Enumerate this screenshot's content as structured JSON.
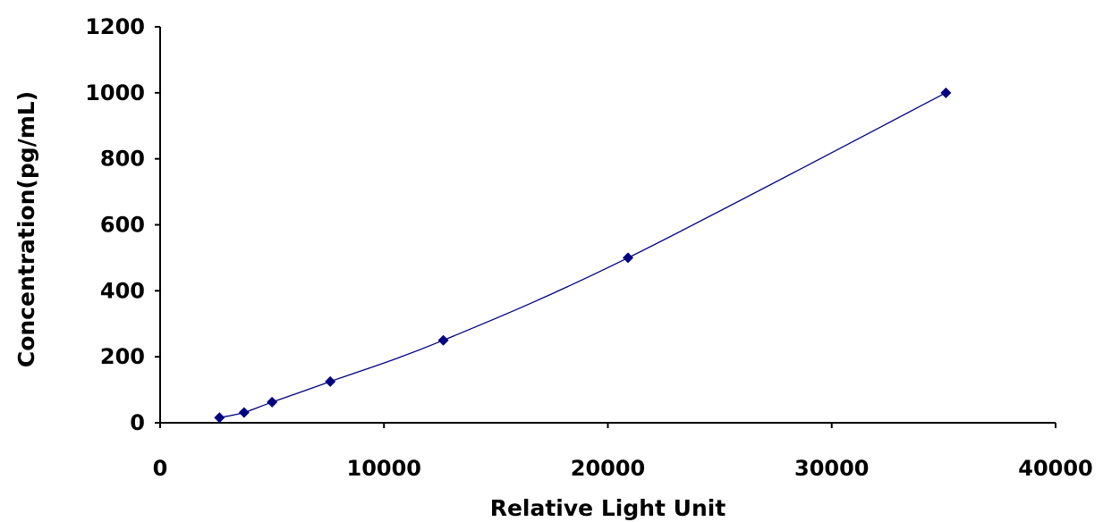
{
  "chart_data": {
    "type": "scatter",
    "title": "",
    "xlabel": "Relative Light Unit",
    "ylabel": "Concentration(pg/mL)",
    "xlim": [
      0,
      40000
    ],
    "ylim": [
      0,
      1200
    ],
    "xticks": [
      "0",
      "10000",
      "20000",
      "30000",
      "40000"
    ],
    "yticks": [
      "0",
      "200",
      "400",
      "600",
      "800",
      "1000",
      "1200"
    ],
    "grid": false,
    "legend": "none",
    "smooth_line": true,
    "series": [
      {
        "x": [
          2650,
          3750,
          5000,
          7600,
          12650,
          20900,
          35100
        ],
        "y": [
          15.6,
          31.2,
          62.5,
          125,
          250,
          500,
          1000
        ]
      }
    ],
    "colors": {
      "marker": "#000080",
      "line": "#000080",
      "axis": "#000000"
    }
  }
}
